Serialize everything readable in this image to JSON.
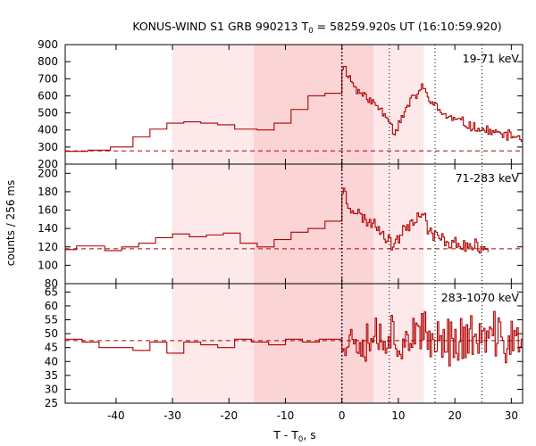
{
  "chart_data": {
    "type": "line",
    "title": "KONUS-WIND S1 GRB 990213 T0 = 58259.920s UT (16:10:59.920)",
    "title_parts": [
      "KONUS-WIND S1 GRB 990213 T",
      "0",
      " = 58259.920s UT (16:10:59.920)"
    ],
    "xlabel_parts": [
      "T - T",
      "0",
      ", s"
    ],
    "ylabel": "counts / 256 ms",
    "xlim": [
      -49,
      32
    ],
    "xticks": [
      -40,
      -30,
      -20,
      -10,
      0,
      10,
      20,
      30
    ],
    "xtick_labels": [
      "-40",
      "-30",
      "-20",
      "-10",
      "0",
      "10",
      "20",
      "30"
    ],
    "grid": false,
    "colors": {
      "data": "#b00000",
      "shade_light": "#fde9ea",
      "shade_dark": "#fbd4d6",
      "marker": "#000000"
    },
    "shaded_intervals": [
      {
        "from": -30.1,
        "to": 14.5,
        "level": "light"
      },
      {
        "from": -15.6,
        "to": 5.6,
        "level": "dark"
      }
    ],
    "vertical_markers": [
      {
        "x": 0,
        "style": "dotted-bold"
      },
      {
        "x": 8.4,
        "style": "dotted"
      },
      {
        "x": 16.5,
        "style": "dotted"
      },
      {
        "x": 24.8,
        "style": "dotted"
      }
    ],
    "panels": [
      {
        "label": "19-71 keV",
        "ylim": [
          200,
          900
        ],
        "yticks": [
          200,
          300,
          400,
          500,
          600,
          700,
          800,
          900
        ],
        "ytick_labels": [
          "200",
          "300",
          "400",
          "500",
          "600",
          "700",
          "800",
          "900"
        ],
        "background": 278,
        "pre_burst_steps": [
          {
            "x0": -49,
            "x1": -45,
            "y": 275
          },
          {
            "x0": -45,
            "x1": -41,
            "y": 282
          },
          {
            "x0": -41,
            "x1": -37,
            "y": 300
          },
          {
            "x0": -37,
            "x1": -34,
            "y": 360
          },
          {
            "x0": -34,
            "x1": -31,
            "y": 405
          },
          {
            "x0": -31,
            "x1": -28,
            "y": 440
          },
          {
            "x0": -28,
            "x1": -25,
            "y": 448
          },
          {
            "x0": -25,
            "x1": -22,
            "y": 440
          },
          {
            "x0": -22,
            "x1": -19,
            "y": 430
          },
          {
            "x0": -19,
            "x1": -15,
            "y": 405
          },
          {
            "x0": -15,
            "x1": -12,
            "y": 400
          },
          {
            "x0": -12,
            "x1": -9,
            "y": 440
          },
          {
            "x0": -9,
            "x1": -6,
            "y": 520
          },
          {
            "x0": -6,
            "x1": -3,
            "y": 600
          },
          {
            "x0": -3,
            "x1": -0.5,
            "y": 615
          }
        ],
        "burst_anchors": [
          [
            0,
            720
          ],
          [
            0.2,
            790
          ],
          [
            0.6,
            760
          ],
          [
            1.5,
            700
          ],
          [
            2.5,
            640
          ],
          [
            4,
            600
          ],
          [
            5.5,
            560
          ],
          [
            7,
            520
          ],
          [
            8.4,
            470
          ],
          [
            9.2,
            380
          ],
          [
            10.3,
            450
          ],
          [
            12,
            560
          ],
          [
            13.5,
            620
          ],
          [
            14.3,
            650
          ],
          [
            15.5,
            580
          ],
          [
            17,
            520
          ],
          [
            19,
            470
          ],
          [
            21,
            450
          ],
          [
            23,
            420
          ],
          [
            25,
            400
          ],
          [
            27,
            385
          ],
          [
            29,
            370
          ],
          [
            31,
            360
          ],
          [
            32,
            360
          ]
        ],
        "noise": 36,
        "seed": 11
      },
      {
        "label": "71-283 keV",
        "ylim": [
          80,
          210
        ],
        "yticks": [
          80,
          100,
          120,
          140,
          160,
          180,
          200
        ],
        "ytick_labels": [
          "80",
          "100",
          "120",
          "140",
          "160",
          "180",
          "200"
        ],
        "background": 118,
        "pre_burst_steps": [
          {
            "x0": -49,
            "x1": -47,
            "y": 117
          },
          {
            "x0": -47,
            "x1": -42,
            "y": 121
          },
          {
            "x0": -42,
            "x1": -39,
            "y": 116
          },
          {
            "x0": -39,
            "x1": -36,
            "y": 120
          },
          {
            "x0": -36,
            "x1": -33,
            "y": 124
          },
          {
            "x0": -33,
            "x1": -30,
            "y": 130
          },
          {
            "x0": -30,
            "x1": -27,
            "y": 134
          },
          {
            "x0": -27,
            "x1": -24,
            "y": 131
          },
          {
            "x0": -24,
            "x1": -21,
            "y": 133
          },
          {
            "x0": -21,
            "x1": -18,
            "y": 135
          },
          {
            "x0": -18,
            "x1": -15,
            "y": 124
          },
          {
            "x0": -15,
            "x1": -12,
            "y": 120
          },
          {
            "x0": -12,
            "x1": -9,
            "y": 128
          },
          {
            "x0": -9,
            "x1": -6,
            "y": 136
          },
          {
            "x0": -6,
            "x1": -3,
            "y": 140
          },
          {
            "x0": -3,
            "x1": -0.5,
            "y": 148
          }
        ],
        "burst_anchors": [
          [
            0,
            178
          ],
          [
            0.3,
            185
          ],
          [
            1,
            168
          ],
          [
            2.5,
            158
          ],
          [
            4,
            150
          ],
          [
            6,
            145
          ],
          [
            8,
            130
          ],
          [
            9,
            122
          ],
          [
            10.5,
            135
          ],
          [
            12.5,
            150
          ],
          [
            14.3,
            157
          ],
          [
            15.5,
            138
          ],
          [
            17,
            130
          ],
          [
            19,
            125
          ],
          [
            21,
            122
          ],
          [
            23,
            120
          ],
          [
            25,
            120
          ],
          [
            26,
            120
          ]
        ],
        "burst_end": 26,
        "noise": 9,
        "seed": 23
      },
      {
        "label": "283-1070 keV",
        "ylim": [
          25,
          68
        ],
        "yticks": [
          25,
          30,
          35,
          40,
          45,
          50,
          55,
          60,
          65
        ],
        "ytick_labels": [
          "25",
          "30",
          "35",
          "40",
          "45",
          "50",
          "55",
          "60",
          "65"
        ],
        "background": 47.5,
        "pre_burst_steps": [
          {
            "x0": -49,
            "x1": -46,
            "y": 48
          },
          {
            "x0": -46,
            "x1": -43,
            "y": 47
          },
          {
            "x0": -43,
            "x1": -40,
            "y": 45
          },
          {
            "x0": -40,
            "x1": -37,
            "y": 45
          },
          {
            "x0": -37,
            "x1": -34,
            "y": 44
          },
          {
            "x0": -34,
            "x1": -31,
            "y": 47
          },
          {
            "x0": -31,
            "x1": -28,
            "y": 43
          },
          {
            "x0": -28,
            "x1": -25,
            "y": 47
          },
          {
            "x0": -25,
            "x1": -22,
            "y": 46
          },
          {
            "x0": -22,
            "x1": -19,
            "y": 45
          },
          {
            "x0": -19,
            "x1": -16,
            "y": 48
          },
          {
            "x0": -16,
            "x1": -13,
            "y": 47
          },
          {
            "x0": -13,
            "x1": -10,
            "y": 46
          },
          {
            "x0": -10,
            "x1": -7,
            "y": 48
          },
          {
            "x0": -7,
            "x1": -4,
            "y": 47
          },
          {
            "x0": -4,
            "x1": -0.5,
            "y": 48
          }
        ],
        "burst_anchors": [
          [
            0,
            48
          ],
          [
            5,
            50
          ],
          [
            10,
            49
          ],
          [
            15,
            48
          ],
          [
            20,
            48
          ],
          [
            25,
            48
          ],
          [
            32,
            48
          ]
        ],
        "noise": 11,
        "seed": 37
      }
    ]
  }
}
